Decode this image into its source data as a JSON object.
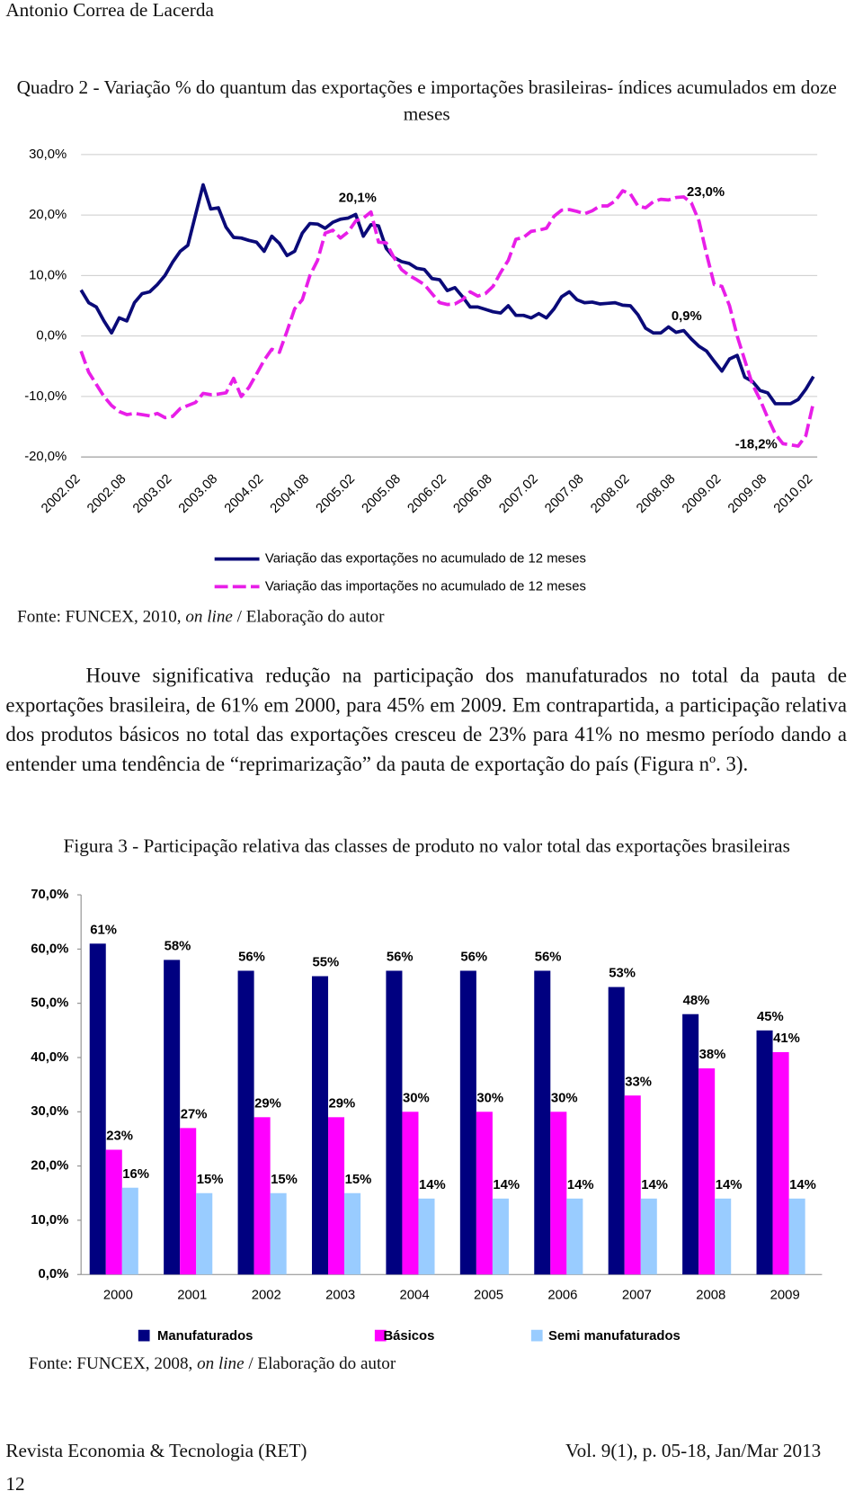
{
  "header": {
    "author": "Antonio Correa de Lacerda"
  },
  "chart_data": [
    {
      "type": "line",
      "title": "Quadro 2 - Variação % do quantum das exportações e importações brasileiras- índices acumulados em doze meses",
      "categories": [
        "2002.02",
        null,
        null,
        null,
        null,
        null,
        "2002.08",
        null,
        null,
        null,
        null,
        null,
        "2003.02",
        null,
        null,
        null,
        null,
        null,
        "2003.08",
        null,
        null,
        null,
        null,
        null,
        "2004.02",
        null,
        null,
        null,
        null,
        null,
        "2004.08",
        null,
        null,
        null,
        null,
        null,
        "2005.02",
        null,
        null,
        null,
        null,
        null,
        "2005.08",
        null,
        null,
        null,
        null,
        null,
        "2006.02",
        null,
        null,
        null,
        null,
        null,
        "2006.08",
        null,
        null,
        null,
        null,
        null,
        "2007.02",
        null,
        null,
        null,
        null,
        null,
        "2007.08",
        null,
        null,
        null,
        null,
        null,
        "2008.02",
        null,
        null,
        null,
        null,
        null,
        "2008.08",
        null,
        null,
        null,
        null,
        null,
        "2009.02",
        null,
        null,
        null,
        null,
        null,
        "2009.08",
        null,
        null,
        null,
        null,
        null,
        "2010.02"
      ],
      "series": [
        {
          "name": "Variação das exportações no acumulado de 12 meses",
          "color": "#0a0a78",
          "line_style": "solid",
          "values": [
            7.6,
            5.5,
            4.8,
            2.5,
            0.5,
            3,
            2.5,
            5.5,
            7,
            7.3,
            8.5,
            10,
            12.2,
            14,
            15,
            20,
            25,
            21,
            21.2,
            18,
            16.3,
            16.2,
            15.8,
            15.5,
            14,
            16.5,
            15.3,
            13.3,
            14,
            17,
            18.6,
            18.5,
            17.8,
            18.8,
            19.3,
            19.5,
            20.1,
            16.5,
            18.4,
            18.2,
            14.5,
            13,
            12.3,
            12,
            11.2,
            11,
            9.5,
            9.3,
            7.5,
            8,
            6.5,
            4.8,
            4.8,
            4.4,
            4,
            3.8,
            5,
            3.4,
            3.4,
            3,
            3.7,
            3,
            4.5,
            6.5,
            7.3,
            6,
            5.5,
            5.6,
            5.3,
            5.4,
            5.5,
            5.1,
            5,
            3.5,
            1.3,
            0.5,
            0.5,
            1.5,
            0.6,
            0.9,
            -0.5,
            -1.7,
            -2.5,
            -4.2,
            -5.8,
            -3.8,
            -3.2,
            -6.8,
            -7.5,
            -9,
            -9.4,
            -11.2,
            -11.2,
            -11.2,
            -10.5,
            -8.8,
            -6.7
          ]
        },
        {
          "name": "Variação das importações no acumulado de 12 meses",
          "color": "#e81ee8",
          "line_style": "dashed",
          "values": [
            -2.5,
            -6,
            -8,
            -10,
            -11.5,
            -12.5,
            -13,
            -12.8,
            -13,
            -13.2,
            -12.8,
            -13.5,
            -13.3,
            -12,
            -11.5,
            -11,
            -9.5,
            -9.7,
            -9.6,
            -9.4,
            -7,
            -10,
            -8.5,
            -6.3,
            -4,
            -2.2,
            -2.7,
            0.8,
            4.5,
            6,
            10,
            12.5,
            17,
            17.5,
            16.2,
            17.2,
            19,
            19.5,
            20.5,
            15.5,
            15.4,
            13,
            11,
            10,
            9.3,
            8.5,
            7,
            5.5,
            5.2,
            5.3,
            6,
            7.3,
            6.6,
            7,
            8.2,
            10.5,
            12.5,
            16,
            16.3,
            17.3,
            17.5,
            17.8,
            19.8,
            20.8,
            20.9,
            20.6,
            20.2,
            20.7,
            21.5,
            21.5,
            22.3,
            24,
            23.5,
            21.5,
            21.2,
            22.2,
            22.6,
            22.5,
            22.9,
            23,
            22,
            19,
            13.5,
            8.5,
            8.2,
            5,
            0,
            -4,
            -8,
            -10.5,
            -13.5,
            -16.2,
            -17.8,
            -18,
            -18.2,
            -16.5,
            -11
          ]
        }
      ],
      "annotations": [
        "20,1%",
        "23,0%",
        "0,9%",
        "-18,2%"
      ],
      "ylim": [
        -20,
        30
      ],
      "yticks": [
        {
          "value": -20,
          "label": "-20,0%"
        },
        {
          "value": -10,
          "label": "-10,0%"
        },
        {
          "value": 0,
          "label": "0,0%"
        },
        {
          "value": 10,
          "label": "10,0%"
        },
        {
          "value": 20,
          "label": "20,0%"
        },
        {
          "value": 30,
          "label": "30,0%"
        }
      ],
      "grid": true,
      "legend": "bottom",
      "source": [
        "Fonte: FUNCEX, 2010, ",
        "on line",
        " / Elaboração do autor"
      ]
    },
    {
      "type": "bar",
      "title": "Figura 3 - Participação relativa das classes de produto no valor total das exportações brasileiras",
      "categories": [
        "2000",
        "2001",
        "2002",
        "2003",
        "2004",
        "2005",
        "2006",
        "2007",
        "2008",
        "2009"
      ],
      "series": [
        {
          "name": "Manufaturados",
          "color": "#000080",
          "values": [
            61,
            58,
            56,
            55,
            56,
            56,
            56,
            53,
            48,
            45
          ],
          "value_labels": [
            "61%",
            "58%",
            "56%",
            "55%",
            "56%",
            "56%",
            "56%",
            "53%",
            "48%",
            "45%"
          ]
        },
        {
          "name": "Básicos",
          "color": "#ff00ff",
          "values": [
            23,
            27,
            29,
            29,
            30,
            30,
            30,
            33,
            38,
            41
          ],
          "value_labels": [
            "23%",
            "27%",
            "29%",
            "29%",
            "30%",
            "30%",
            "30%",
            "33%",
            "38%",
            "41%"
          ]
        },
        {
          "name": "Semi manufaturados",
          "color": "#99ccff",
          "values": [
            16,
            15,
            15,
            15,
            14,
            14,
            14,
            14,
            14,
            14
          ],
          "value_labels": [
            "16%",
            "15%",
            "15%",
            "15%",
            "14%",
            "14%",
            "14%",
            "14%",
            "14%",
            "14%"
          ]
        }
      ],
      "ylim": [
        0,
        70
      ],
      "yticks": [
        {
          "value": 0,
          "label": "0,0%"
        },
        {
          "value": 10,
          "label": "10,0%"
        },
        {
          "value": 20,
          "label": "20,0%"
        },
        {
          "value": 30,
          "label": "30,0%"
        },
        {
          "value": 40,
          "label": "40,0%"
        },
        {
          "value": 50,
          "label": "50,0%"
        },
        {
          "value": 60,
          "label": "60,0%"
        },
        {
          "value": 70,
          "label": "70,0%"
        }
      ],
      "grid": false,
      "legend": "bottom",
      "source": [
        "Fonte: FUNCEX, 2008, ",
        "on line",
        " / Elaboração do autor"
      ]
    }
  ],
  "paragraph": "Houve significativa redução na participação dos manufaturados no total da pauta de exportações brasileira, de 61% em 2000, para 45% em 2009. Em contrapartida, a participação relativa dos produtos básicos no total das exportações cresceu de 23% para 41% no mesmo período dando a entender uma tendência de “reprimarização” da pauta de exportação do país (Figura nº. 3).",
  "footer": {
    "journal": "Revista Economia & Tecnologia (RET)",
    "issue": "Vol. 9(1), p. 05-18, Jan/Mar 2013",
    "page": "12"
  }
}
